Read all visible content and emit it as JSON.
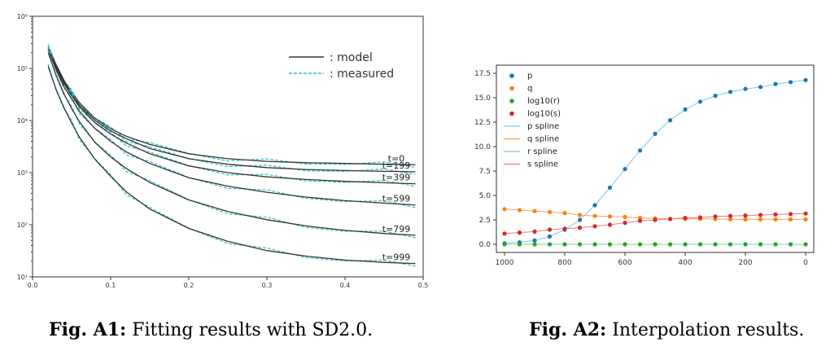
{
  "figures": [
    {
      "caption_label": "Fig. A1:",
      "caption_text": "Fitting results with SD2.0.",
      "chart_data": {
        "type": "line",
        "title": "",
        "xlabel": "",
        "ylabel": "",
        "xlim": [
          0.0,
          0.5
        ],
        "ylim": [
          10,
          1000000
        ],
        "yscale": "log",
        "xticks": [
          "0.0",
          "0.1",
          "0.2",
          "0.3",
          "0.4",
          "0.5"
        ],
        "yticks": [
          "10¹",
          "10²",
          "10³",
          "10⁴",
          "10⁵",
          "10⁶"
        ],
        "legend": {
          "placement": "top-right",
          "entries": [
            ": model",
            ": measured"
          ]
        },
        "grid": false,
        "colors": {
          "model": "#333333",
          "measured": "#2ec4c8"
        },
        "series": [
          {
            "name": "t=0",
            "x": [
              0.02,
              0.03,
              0.04,
              0.05,
              0.06,
              0.08,
              0.1,
              0.12,
              0.15,
              0.2,
              0.25,
              0.3,
              0.35,
              0.4,
              0.45,
              0.49
            ],
            "y": [
              260000,
              120000,
              60000,
              35000,
              22000,
              11000,
              7000,
              5000,
              3500,
              2300,
              1850,
              1650,
              1550,
              1500,
              1450,
              1420
            ]
          },
          {
            "name": "t=199",
            "x": [
              0.02,
              0.03,
              0.04,
              0.05,
              0.06,
              0.08,
              0.1,
              0.12,
              0.15,
              0.2,
              0.25,
              0.3,
              0.35,
              0.4,
              0.45,
              0.49
            ],
            "y": [
              250000,
              110000,
              55000,
              32000,
              20000,
              10000,
              6300,
              4500,
              2900,
              1850,
              1450,
              1250,
              1150,
              1100,
              1060,
              1040
            ]
          },
          {
            "name": "t=399",
            "x": [
              0.02,
              0.03,
              0.04,
              0.05,
              0.06,
              0.08,
              0.1,
              0.12,
              0.15,
              0.2,
              0.25,
              0.3,
              0.35,
              0.4,
              0.45,
              0.49
            ],
            "y": [
              240000,
              105000,
              52000,
              30000,
              18500,
              9000,
              5500,
              3700,
              2300,
              1350,
              1000,
              830,
              740,
              680,
              640,
              610
            ]
          },
          {
            "name": "t=599",
            "x": [
              0.02,
              0.03,
              0.04,
              0.05,
              0.06,
              0.08,
              0.1,
              0.12,
              0.15,
              0.2,
              0.25,
              0.3,
              0.35,
              0.4,
              0.45,
              0.49
            ],
            "y": [
              230000,
              95000,
              45000,
              26000,
              15000,
              7000,
              4000,
              2500,
              1500,
              800,
              550,
              420,
              340,
              290,
              260,
              240
            ]
          },
          {
            "name": "t=799",
            "x": [
              0.02,
              0.03,
              0.04,
              0.05,
              0.06,
              0.08,
              0.1,
              0.12,
              0.15,
              0.2,
              0.25,
              0.3,
              0.35,
              0.4,
              0.45,
              0.49
            ],
            "y": [
              200000,
              75000,
              33000,
              17000,
              9500,
              3800,
              2000,
              1200,
              650,
              300,
              180,
              125,
              95,
              78,
              68,
              63
            ]
          },
          {
            "name": "t=999",
            "x": [
              0.02,
              0.03,
              0.04,
              0.05,
              0.06,
              0.08,
              0.1,
              0.12,
              0.15,
              0.2,
              0.25,
              0.3,
              0.35,
              0.4,
              0.45,
              0.49
            ],
            "y": [
              110000,
              40000,
              18000,
              9000,
              4800,
              1800,
              850,
              430,
              200,
              85,
              48,
              32,
              25,
              21,
              19,
              18
            ]
          }
        ],
        "series_labels": [
          "t=0",
          "t=199",
          "t=399",
          "t=599",
          "t=799",
          "t=999"
        ]
      }
    },
    {
      "caption_label": "Fig. A2:",
      "caption_text": "Interpolation results.",
      "chart_data": {
        "type": "scatter",
        "title": "",
        "xlabel": "",
        "ylabel": "",
        "xlim": [
          1000,
          0
        ],
        "ylim": [
          0,
          17.5
        ],
        "xticks": [
          "1000",
          "800",
          "600",
          "400",
          "200",
          "0"
        ],
        "yticks": [
          "0.0",
          "2.5",
          "5.0",
          "7.5",
          "10.0",
          "12.5",
          "15.0",
          "17.5"
        ],
        "legend": {
          "placement": "top-left",
          "entries": [
            "p",
            "q",
            "log10(r)",
            "log10(s)",
            "p spline",
            "q spline",
            "r spline",
            "s spline"
          ]
        },
        "grid": false,
        "x": [
          1000,
          950,
          900,
          850,
          800,
          750,
          700,
          650,
          600,
          550,
          500,
          450,
          400,
          350,
          300,
          250,
          200,
          150,
          100,
          50,
          0
        ],
        "series": [
          {
            "name": "p",
            "color": "#1f77b4",
            "values": [
              0.1,
              0.2,
              0.4,
              0.8,
              1.5,
              2.5,
              4.0,
              5.8,
              7.7,
              9.6,
              11.3,
              12.7,
              13.8,
              14.6,
              15.2,
              15.6,
              15.9,
              16.1,
              16.4,
              16.6,
              16.8
            ]
          },
          {
            "name": "q",
            "color": "#ff7f0e",
            "values": [
              3.6,
              3.5,
              3.4,
              3.3,
              3.2,
              3.0,
              2.9,
              2.85,
              2.8,
              2.7,
              2.65,
              2.6,
              2.6,
              2.6,
              2.6,
              2.55,
              2.55,
              2.55,
              2.55,
              2.55,
              2.55
            ]
          },
          {
            "name": "log10(r)",
            "color": "#2ca02c",
            "values": [
              0,
              0,
              0,
              0,
              0,
              0,
              0,
              0,
              0,
              0,
              0,
              0,
              0,
              0,
              0,
              0,
              0,
              0,
              0,
              0,
              0
            ]
          },
          {
            "name": "log10(s)",
            "color": "#d62728",
            "values": [
              1.1,
              1.2,
              1.3,
              1.5,
              1.6,
              1.7,
              1.85,
              2.0,
              2.2,
              2.4,
              2.5,
              2.6,
              2.7,
              2.75,
              2.85,
              2.9,
              2.95,
              3.0,
              3.05,
              3.1,
              3.15
            ]
          }
        ],
        "spline_colors": {
          "p spline": "#7fc6e8",
          "q spline": "#ff9a5a",
          "r spline": "#7ed67e",
          "s spline": "#e87a7a"
        }
      }
    }
  ]
}
